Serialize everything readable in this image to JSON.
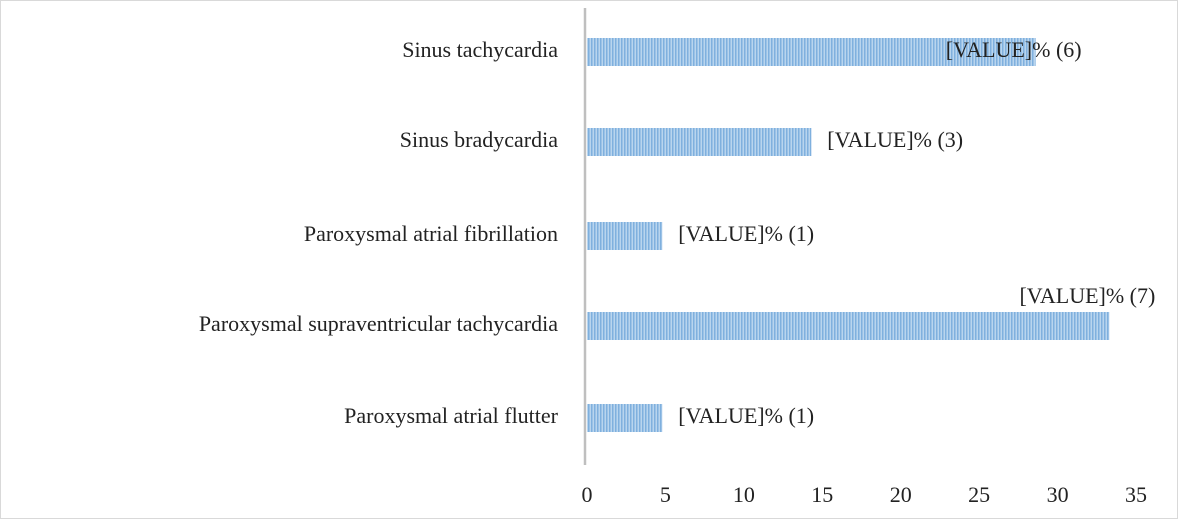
{
  "chart_data": {
    "type": "bar",
    "orientation": "horizontal",
    "categories": [
      "Sinus tachycardia",
      "Sinus bradycardia",
      "Paroxysmal atrial fibrillation",
      "Paroxysmal supraventricular tachycardia",
      "Paroxysmal atrial flutter"
    ],
    "values": [
      28.6,
      14.3,
      4.8,
      33.3,
      4.8
    ],
    "value_labels": [
      "[VALUE]% (6)",
      "[VALUE]% (3)",
      "[VALUE]% (1)",
      "[VALUE]% (7)",
      "[VALUE]% (1)"
    ],
    "color": "#9dc3e6",
    "xlim": [
      0,
      35
    ],
    "xticks": [
      0,
      5,
      10,
      15,
      20,
      25,
      30,
      35
    ],
    "grid": false
  }
}
